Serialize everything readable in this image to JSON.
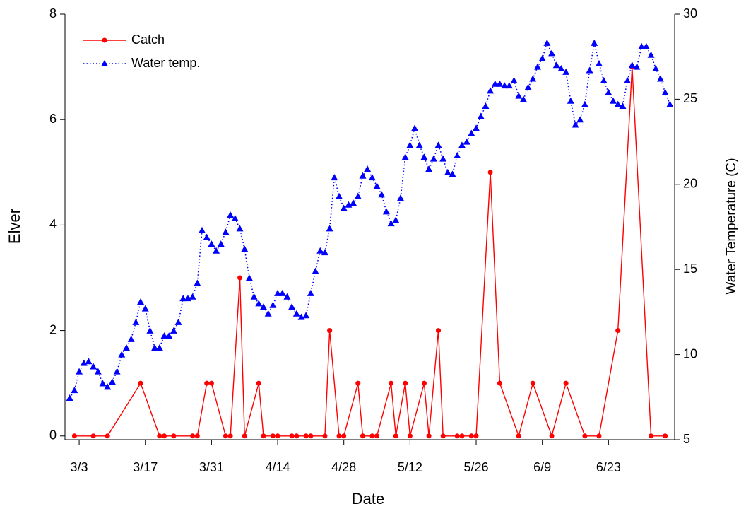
{
  "chart_data": {
    "type": "line",
    "x_label": "Date",
    "y_label": "Elver",
    "y2_label": "Water Temperature (C)",
    "xlim": [
      "2/28",
      "7/7"
    ],
    "xticks": [
      "3/3",
      "3/17",
      "3/31",
      "4/14",
      "4/28",
      "5/12",
      "5/26",
      "6/9",
      "6/23"
    ],
    "ylim": [
      -0.07,
      8
    ],
    "yticks": [
      0,
      2,
      4,
      6,
      8
    ],
    "y2lim": [
      5,
      30
    ],
    "y2ticks": [
      5,
      10,
      15,
      20,
      25,
      30
    ],
    "legend": "upper left",
    "series": [
      {
        "name": "Catch",
        "color": "#ff0000",
        "marker": "circle",
        "line_style": "solid",
        "x": [
          "3/2",
          "3/6",
          "3/9",
          "3/16",
          "3/20",
          "3/21",
          "3/23",
          "3/27",
          "3/28",
          "3/30",
          "3/31",
          "4/3",
          "4/4",
          "4/6",
          "4/7",
          "4/10",
          "4/11",
          "4/13",
          "4/14",
          "4/17",
          "4/18",
          "4/20",
          "4/21",
          "4/24",
          "4/25",
          "4/27",
          "4/28",
          "5/1",
          "5/2",
          "5/4",
          "5/5",
          "5/8",
          "5/9",
          "5/11",
          "5/12",
          "5/15",
          "5/16",
          "5/18",
          "5/19",
          "5/22",
          "5/23",
          "5/25",
          "5/26",
          "5/29",
          "5/31",
          "6/4",
          "6/7",
          "6/11",
          "6/14",
          "6/18",
          "6/21",
          "6/25",
          "6/28",
          "7/2",
          "7/5"
        ],
        "values": [
          0,
          0,
          0,
          1,
          0,
          0,
          0,
          0,
          0,
          1,
          1,
          0,
          0,
          3,
          0,
          1,
          0,
          0,
          0,
          0,
          0,
          0,
          0,
          0,
          2,
          0,
          0,
          1,
          0,
          0,
          0,
          1,
          0,
          1,
          0,
          1,
          0,
          2,
          0,
          0,
          0,
          0,
          0,
          5,
          1,
          0,
          1,
          0,
          1,
          0,
          0,
          2,
          7,
          0,
          0
        ]
      },
      {
        "name": "Water temp.",
        "color": "#0000ff",
        "marker": "triangle",
        "line_style": "dotted",
        "axis": "y2",
        "x": [
          "3/1",
          "3/2",
          "3/3",
          "3/4",
          "3/5",
          "3/6",
          "3/7",
          "3/8",
          "3/9",
          "3/10",
          "3/11",
          "3/12",
          "3/13",
          "3/14",
          "3/15",
          "3/16",
          "3/17",
          "3/18",
          "3/19",
          "3/20",
          "3/21",
          "3/22",
          "3/23",
          "3/24",
          "3/25",
          "3/26",
          "3/27",
          "3/28",
          "3/29",
          "3/30",
          "3/31",
          "4/1",
          "4/2",
          "4/3",
          "4/4",
          "4/5",
          "4/6",
          "4/7",
          "4/8",
          "4/9",
          "4/10",
          "4/11",
          "4/12",
          "4/13",
          "4/14",
          "4/15",
          "4/16",
          "4/17",
          "4/18",
          "4/19",
          "4/20",
          "4/21",
          "4/22",
          "4/23",
          "4/24",
          "4/25",
          "4/26",
          "4/27",
          "4/28",
          "4/29",
          "4/30",
          "5/1",
          "5/2",
          "5/3",
          "5/4",
          "5/5",
          "5/6",
          "5/7",
          "5/8",
          "5/9",
          "5/10",
          "5/11",
          "5/12",
          "5/13",
          "5/14",
          "5/15",
          "5/16",
          "5/17",
          "5/18",
          "5/19",
          "5/20",
          "5/21",
          "5/22",
          "5/23",
          "5/24",
          "5/25",
          "5/26",
          "5/27",
          "5/28",
          "5/29",
          "5/30",
          "5/31",
          "6/1",
          "6/2",
          "6/3",
          "6/4",
          "6/5",
          "6/6",
          "6/7",
          "6/8",
          "6/9",
          "6/10",
          "6/11",
          "6/12",
          "6/13",
          "6/14",
          "6/15",
          "6/16",
          "6/17",
          "6/18",
          "6/19",
          "6/20",
          "6/21",
          "6/22",
          "6/23",
          "6/24",
          "6/25",
          "6/26",
          "6/27",
          "6/28",
          "6/29",
          "6/30",
          "7/1",
          "7/2",
          "7/3",
          "7/4",
          "7/5",
          "7/6"
        ],
        "values": [
          7.45,
          7.9,
          9.0,
          9.5,
          9.6,
          9.3,
          9.0,
          8.3,
          8.1,
          8.4,
          9.0,
          10.0,
          10.4,
          10.9,
          11.9,
          13.1,
          12.7,
          11.4,
          10.4,
          10.4,
          11.1,
          11.1,
          11.4,
          11.9,
          13.3,
          13.3,
          13.4,
          14.2,
          17.3,
          16.9,
          16.5,
          16.1,
          16.5,
          17.2,
          18.2,
          18.0,
          17.4,
          16.2,
          14.5,
          13.4,
          13.0,
          12.8,
          12.4,
          12.9,
          13.6,
          13.6,
          13.4,
          12.8,
          12.4,
          12.2,
          12.3,
          13.6,
          14.9,
          16.1,
          16.0,
          17.4,
          20.4,
          19.3,
          18.6,
          18.8,
          18.9,
          19.3,
          20.5,
          20.9,
          20.4,
          19.9,
          19.4,
          18.4,
          17.7,
          17.9,
          19.2,
          21.6,
          22.3,
          23.3,
          22.3,
          21.6,
          20.9,
          21.5,
          22.3,
          21.5,
          20.7,
          20.6,
          21.7,
          22.3,
          22.5,
          23.0,
          23.3,
          24.0,
          24.6,
          25.5,
          25.9,
          25.9,
          25.8,
          25.8,
          26.1,
          25.2,
          25.0,
          25.7,
          26.2,
          26.9,
          27.4,
          28.3,
          27.7,
          27.0,
          26.8,
          26.6,
          24.9,
          23.5,
          23.8,
          24.7,
          26.7,
          28.3,
          27.1,
          26.1,
          25.4,
          24.9,
          24.7,
          24.6,
          26.1,
          27.0,
          26.9,
          28.1,
          28.1,
          27.6,
          26.8,
          26.2,
          25.4,
          24.7
        ]
      }
    ]
  }
}
